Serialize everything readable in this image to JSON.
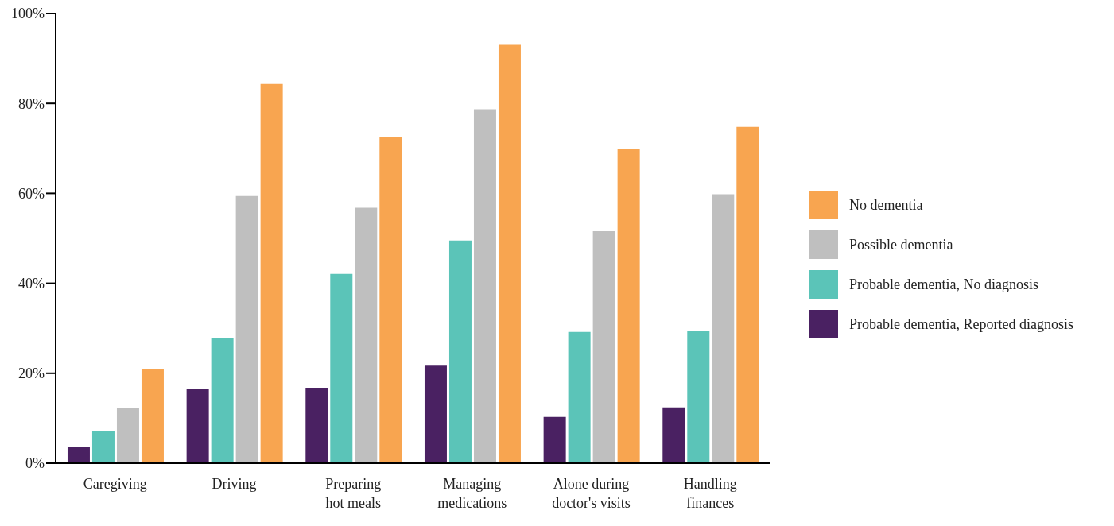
{
  "chart_data": {
    "type": "bar",
    "categories": [
      "Caregiving",
      "Driving",
      "Preparing hot meals",
      "Managing medications",
      "Alone during doctor's visits",
      "Handling finances"
    ],
    "series": [
      {
        "name": "Probable dementia, Reported diagnosis",
        "color": "#4a2162",
        "values": [
          3.7,
          16.6,
          16.8,
          21.7,
          10.3,
          12.4
        ]
      },
      {
        "name": "Probable dementia, No diagnosis",
        "color": "#5bc4b8",
        "values": [
          7.2,
          27.8,
          42.1,
          49.5,
          29.2,
          29.4
        ]
      },
      {
        "name": "Possible dementia",
        "color": "#bfbfbf",
        "values": [
          12.2,
          59.4,
          56.8,
          78.7,
          51.6,
          59.8
        ]
      },
      {
        "name": "No dementia",
        "color": "#f8a550",
        "values": [
          21.0,
          84.3,
          72.6,
          93.0,
          69.9,
          74.8
        ]
      }
    ],
    "ylim": [
      0,
      100
    ],
    "yticks": [
      {
        "value": 0,
        "label": "0%"
      },
      {
        "value": 20,
        "label": "20%"
      },
      {
        "value": 40,
        "label": "40%"
      },
      {
        "value": 60,
        "label": "60%"
      },
      {
        "value": 80,
        "label": "80%"
      },
      {
        "value": 100,
        "label": "100%"
      }
    ],
    "grid": false,
    "legend": "right"
  }
}
